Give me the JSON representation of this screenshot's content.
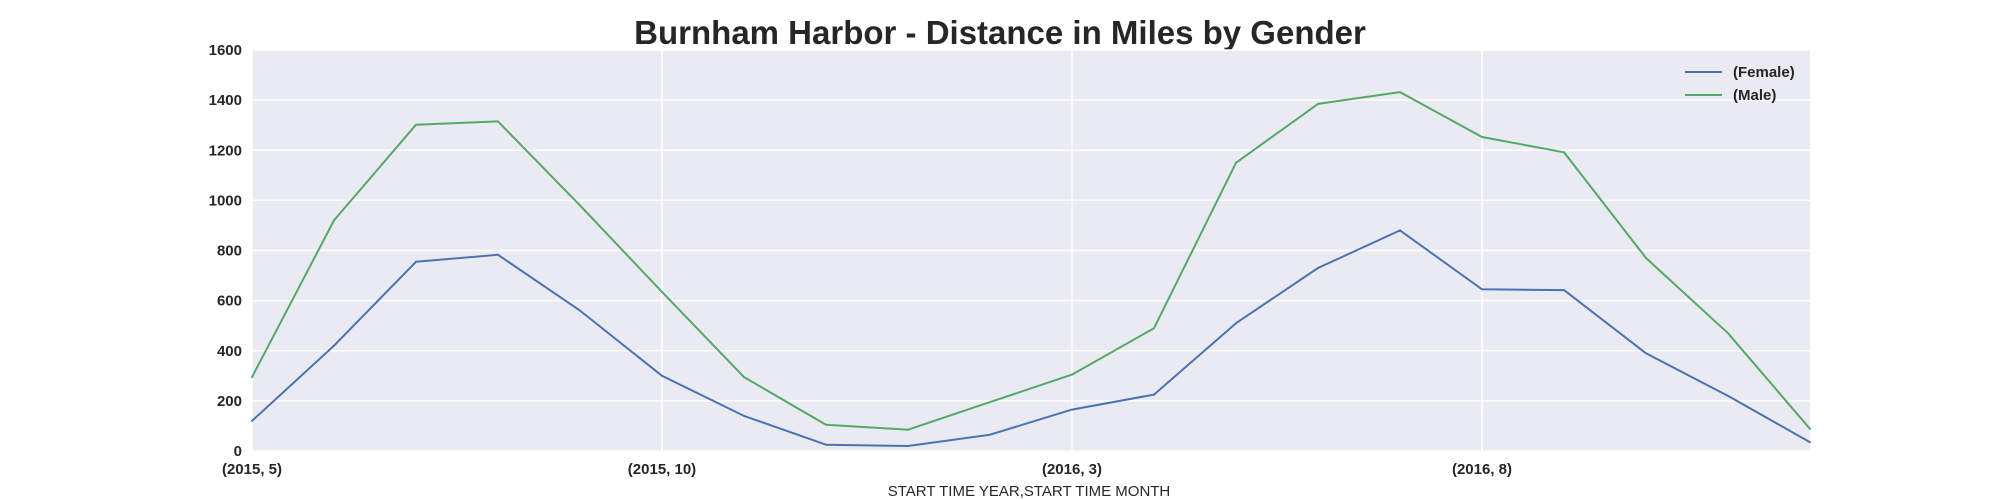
{
  "chart_data": {
    "type": "line",
    "title": "Burnham Harbor - Distance in Miles by Gender",
    "xlabel": "START TIME YEAR,START TIME MONTH",
    "ylabel": "",
    "x": [
      "(2015, 5)",
      "(2015, 6)",
      "(2015, 7)",
      "(2015, 8)",
      "(2015, 9)",
      "(2015, 10)",
      "(2015, 11)",
      "(2015, 12)",
      "(2016, 1)",
      "(2016, 2)",
      "(2016, 3)",
      "(2016, 4)",
      "(2016, 5)",
      "(2016, 6)",
      "(2016, 7)",
      "(2016, 8)",
      "(2016, 9)",
      "(2016, 10)",
      "(2016, 11)",
      "(2016, 12)"
    ],
    "xticks": [
      "(2015, 5)",
      "(2015, 10)",
      "(2016, 3)",
      "(2016, 8)"
    ],
    "yticks": [
      0,
      200,
      400,
      600,
      800,
      1000,
      1200,
      1400,
      1600
    ],
    "ylim": [
      0,
      1600
    ],
    "grid": true,
    "legend_position": "top-right",
    "series": [
      {
        "name": "(Female)",
        "color": "#4c72b0",
        "values": [
          120,
          420,
          755,
          783,
          560,
          300,
          140,
          25,
          20,
          65,
          165,
          225,
          510,
          730,
          880,
          645,
          642,
          390,
          220,
          35
        ]
      },
      {
        "name": "(Male)",
        "color": "#55a868",
        "values": [
          295,
          920,
          1302,
          1315,
          980,
          635,
          295,
          105,
          85,
          195,
          305,
          490,
          1150,
          1385,
          1432,
          1253,
          1192,
          770,
          470,
          88
        ]
      }
    ]
  }
}
